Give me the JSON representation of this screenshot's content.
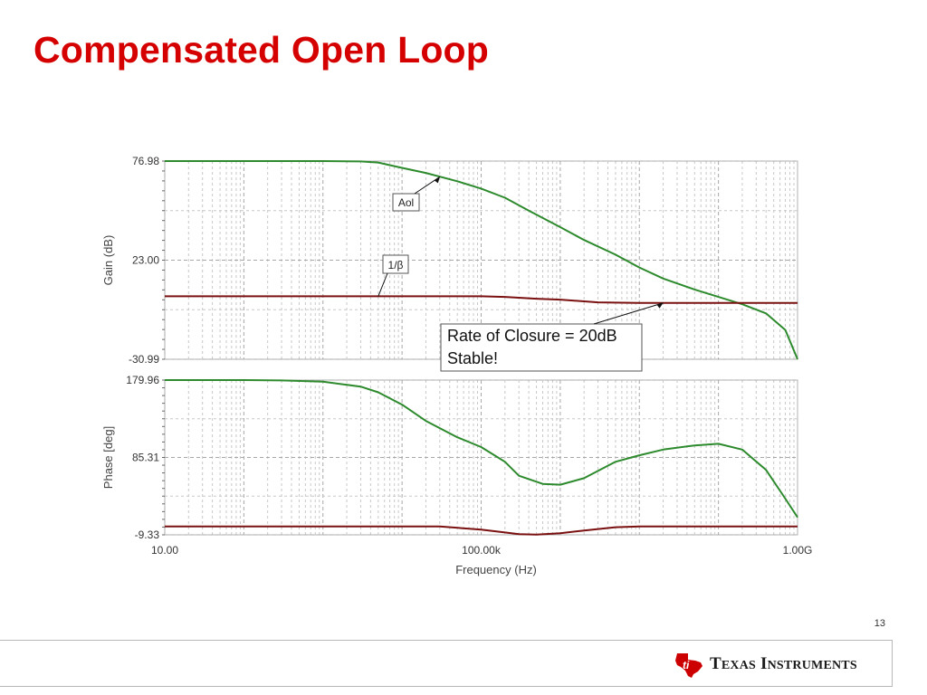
{
  "slide": {
    "title": "Compensated Open Loop",
    "slide_number": "13",
    "logo_text": {
      "first_initial": "T",
      "first_rest": "EXAS",
      "second_initial": "I",
      "second_rest": "NSTRUMENTS"
    }
  },
  "colors": {
    "title": "#d50000",
    "aol_curve": "#2d8a2d",
    "beta_curve": "#7a1010",
    "grid": "#c8c8c8",
    "logo_red": "#cc0000"
  },
  "icons": [
    "ti-logo-icon"
  ],
  "chart_data": [
    {
      "type": "line",
      "panel": "gain",
      "ylabel": "Gain (dB)",
      "xlabel": "Frequency (Hz)",
      "x_scale": "log",
      "xlim": [
        10,
        1000000000
      ],
      "ylim": [
        -30.99,
        76.98
      ],
      "y_ticks": [
        "76.98",
        "23.00",
        "-30.99"
      ],
      "x_ticks": [
        "10.00",
        "100.00k",
        "1.00G"
      ],
      "grid": true,
      "series": [
        {
          "name": "Aol",
          "color": "#2d8a2d",
          "x": [
            10,
            1000,
            3000,
            5000,
            10000,
            20000,
            50000,
            100000,
            200000,
            400000,
            1000000,
            2000000,
            5000000,
            10000000,
            20000000,
            50000000,
            100000000,
            200000000,
            400000000,
            700000000,
            1000000000
          ],
          "y": [
            76.98,
            76.98,
            76.8,
            76.2,
            73.3,
            70.5,
            66.0,
            62.0,
            57.0,
            50.0,
            41.0,
            34.0,
            26.0,
            19.0,
            13.0,
            7.0,
            3.0,
            -1.0,
            -6.0,
            -15.0,
            -30.99
          ]
        },
        {
          "name": "1/β",
          "color": "#7a1010",
          "x": [
            10,
            1000,
            20000,
            100000,
            200000,
            500000,
            1000000,
            3000000,
            10000000,
            1000000000
          ],
          "y": [
            3.3,
            3.3,
            3.3,
            3.3,
            3.0,
            2.0,
            1.5,
            0.0,
            -0.3,
            -0.3
          ]
        }
      ],
      "annotations": [
        {
          "text": "Aol",
          "target_series": "Aol",
          "x": 30000,
          "y": 68.4
        },
        {
          "text": "1/β",
          "target_series": "1/β",
          "x": 5000,
          "y": 3.3
        },
        {
          "text": "Rate of Closure = 20dB",
          "text2": "Stable!",
          "x": 20000000,
          "y": -0.3
        }
      ]
    },
    {
      "type": "line",
      "panel": "phase",
      "ylabel": "Phase [deg]",
      "xlabel": "Frequency (Hz)",
      "x_scale": "log",
      "xlim": [
        10,
        1000000000
      ],
      "ylim": [
        -9.33,
        179.96
      ],
      "y_ticks": [
        "179.96",
        "85.31",
        "-9.33"
      ],
      "x_ticks": [
        "10.00",
        "100.00k",
        "1.00G"
      ],
      "grid": true,
      "series": [
        {
          "name": "Aol",
          "color": "#2d8a2d",
          "x": [
            10,
            100,
            300,
            1000,
            3000,
            5000,
            10000,
            20000,
            50000,
            100000,
            200000,
            300000,
            600000,
            1000000,
            2000000,
            5000000,
            10000000,
            20000000,
            50000000,
            100000000,
            200000000,
            400000000,
            700000000,
            1000000000
          ],
          "y": [
            179.96,
            179.96,
            179.5,
            178.0,
            172.0,
            165.0,
            150.0,
            130.0,
            110.0,
            98.0,
            80.0,
            63.0,
            53.0,
            52.0,
            60.0,
            80.0,
            88.0,
            95.0,
            100.0,
            102.0,
            95.0,
            70.0,
            35.0,
            12.0
          ]
        },
        {
          "name": "1/β",
          "color": "#7a1010",
          "x": [
            10,
            1000,
            10000,
            30000,
            100000,
            200000,
            300000,
            500000,
            1000000,
            2000000,
            5000000,
            10000000,
            1000000000
          ],
          "y": [
            1.0,
            1.0,
            1.0,
            1.0,
            -3.0,
            -6.5,
            -8.5,
            -9.0,
            -7.5,
            -4.0,
            0.0,
            1.0,
            1.0
          ]
        }
      ]
    }
  ]
}
